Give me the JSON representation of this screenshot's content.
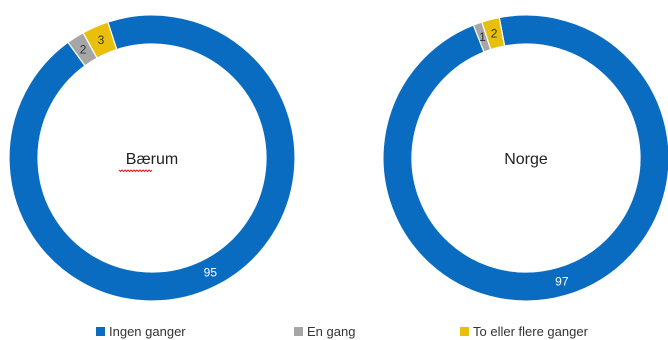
{
  "chart_data": {
    "type": "pie",
    "categories": [
      "Ingen ganger",
      "En gang",
      "To eller flere ganger"
    ],
    "colors": [
      "#0a6cc0",
      "#a6a6a6",
      "#e8c00c"
    ],
    "label_colors": [
      "#ffffff",
      "#333333",
      "#333333"
    ],
    "charts": [
      {
        "center_label": "Bærum",
        "values": [
          95,
          2,
          3
        ]
      },
      {
        "center_label": "Norge",
        "values": [
          97,
          1,
          2
        ]
      }
    ],
    "legend": {
      "placement": "bottom",
      "entries": [
        "Ingen ganger",
        "En gang",
        "To eller flere ganger"
      ]
    }
  }
}
